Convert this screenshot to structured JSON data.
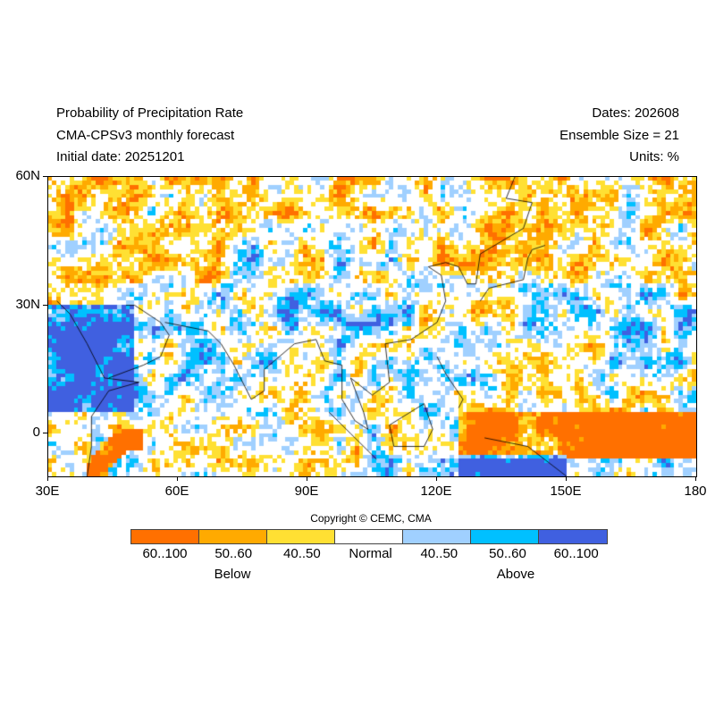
{
  "header": {
    "title": "Probability of Precipitation Rate",
    "model": "CMA-CPSv3 monthly forecast",
    "initial_date": "Initial date: 20251201",
    "dates": "Dates: 202608",
    "ensemble": "Ensemble Size = 21",
    "units": "Units: %"
  },
  "map": {
    "lon_range": [
      30,
      180
    ],
    "lat_range": [
      -10,
      60
    ],
    "lat_labels": [
      "60N",
      "30N",
      "0"
    ],
    "lat_values": [
      60,
      30,
      0
    ],
    "lon_labels": [
      "30E",
      "60E",
      "90E",
      "120E",
      "150E",
      "180"
    ],
    "lon_values": [
      30,
      60,
      90,
      120,
      150,
      180
    ]
  },
  "copyright": "Copyright © CEMC, CMA",
  "legend": {
    "bins": [
      {
        "label": "60..100",
        "color": "#ff7000"
      },
      {
        "label": "50..60",
        "color": "#ffaa00"
      },
      {
        "label": "40..50",
        "color": "#ffe033"
      },
      {
        "label": "Normal",
        "color": "#ffffff"
      },
      {
        "label": "40..50",
        "color": "#a0d0ff"
      },
      {
        "label": "50..60",
        "color": "#00c0ff"
      },
      {
        "label": "60..100",
        "color": "#4060e0"
      }
    ],
    "below": "Below",
    "above": "Above"
  }
}
